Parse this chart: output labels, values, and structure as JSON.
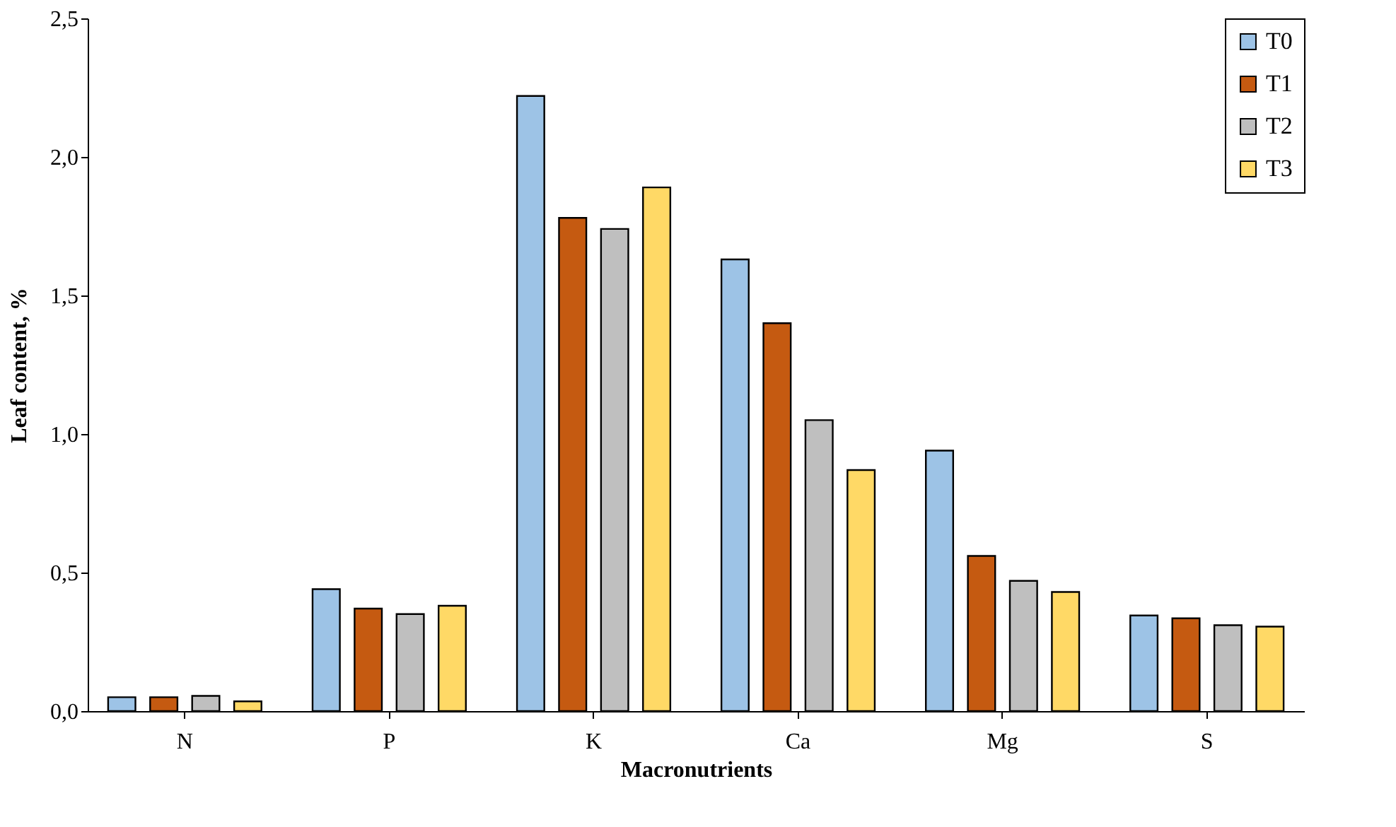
{
  "chart_data": {
    "type": "bar",
    "xlabel": "Macronutrients",
    "ylabel": "Leaf content, %",
    "categories": [
      "N",
      "P",
      "K",
      "Ca",
      "Mg",
      "S"
    ],
    "series": [
      {
        "name": "T0",
        "color": "#9dc3e6",
        "values": [
          0.05,
          0.44,
          2.22,
          1.63,
          0.94,
          0.345
        ]
      },
      {
        "name": "T1",
        "color": "#c55a11",
        "values": [
          0.05,
          0.37,
          1.78,
          1.4,
          0.56,
          0.335
        ]
      },
      {
        "name": "T2",
        "color": "#bfbfbf",
        "values": [
          0.055,
          0.35,
          1.74,
          1.05,
          0.47,
          0.31
        ]
      },
      {
        "name": "T3",
        "color": "#ffd966",
        "values": [
          0.035,
          0.38,
          1.89,
          0.87,
          0.43,
          0.305
        ]
      }
    ],
    "ylim": [
      0,
      2.5
    ],
    "yticks": [
      {
        "value": 0,
        "label": "0,0"
      },
      {
        "value": 0.5,
        "label": "0,5"
      },
      {
        "value": 1,
        "label": "1,0"
      },
      {
        "value": 1.5,
        "label": "1,5"
      },
      {
        "value": 2,
        "label": "2,0"
      },
      {
        "value": 2.5,
        "label": "2,5"
      }
    ],
    "grid": false,
    "legend": "top right"
  }
}
